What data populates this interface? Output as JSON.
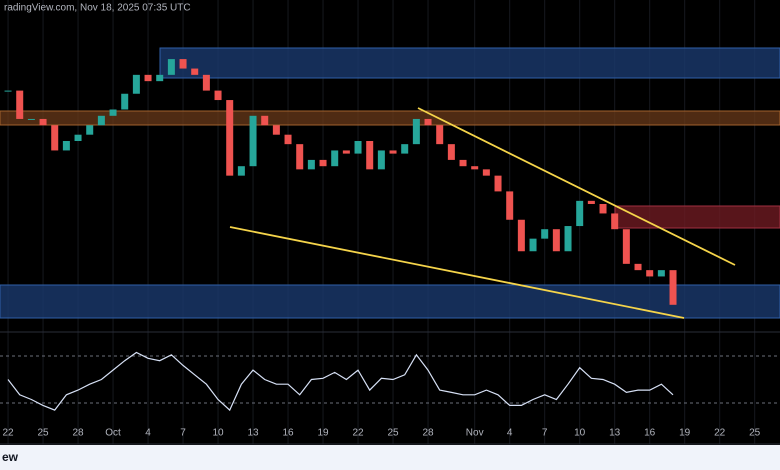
{
  "chart_data": {
    "type": "candlestick",
    "header": "radingView.com, Nov 18, 2025 07:35 UTC",
    "footer": "ew",
    "x": [
      0,
      1,
      2,
      3,
      4,
      5,
      6,
      7,
      8,
      9,
      10,
      11,
      12,
      13,
      14,
      15,
      16,
      17,
      18,
      19,
      20,
      21,
      22,
      23,
      24,
      25,
      26,
      27,
      28,
      29,
      30,
      31,
      32,
      33,
      34,
      35,
      36,
      37,
      38,
      39,
      40,
      41,
      42,
      43,
      44,
      45,
      46,
      47,
      48,
      49,
      50,
      51,
      52,
      53,
      54,
      55,
      56,
      57
    ],
    "xlim": [
      -0.69,
      66.17
    ],
    "xticks": [
      {
        "value": 0,
        "label": "22"
      },
      {
        "value": 3,
        "label": "25"
      },
      {
        "value": 6,
        "label": "28"
      },
      {
        "value": 9,
        "label": "Oct"
      },
      {
        "value": 12,
        "label": "4"
      },
      {
        "value": 15,
        "label": "7"
      },
      {
        "value": 18,
        "label": "10"
      },
      {
        "value": 21,
        "label": "13"
      },
      {
        "value": 24,
        "label": "16"
      },
      {
        "value": 27,
        "label": "19"
      },
      {
        "value": 30,
        "label": "22"
      },
      {
        "value": 33,
        "label": "25"
      },
      {
        "value": 36,
        "label": "28"
      },
      {
        "value": 40,
        "label": "Nov"
      },
      {
        "value": 43,
        "label": "4"
      },
      {
        "value": 46,
        "label": "7"
      },
      {
        "value": 49,
        "label": "10"
      },
      {
        "value": 52,
        "label": "13"
      },
      {
        "value": 55,
        "label": "16"
      },
      {
        "value": 58,
        "label": "19"
      },
      {
        "value": 61,
        "label": "22"
      },
      {
        "value": 64,
        "label": "25"
      }
    ],
    "ylim": [
      0,
      100
    ],
    "y2lim": [
      11.3,
      85.3
    ],
    "y2_levels": [
      70,
      30
    ],
    "up_color": "#26a69a",
    "down_color": "#ef5350",
    "series": [
      {
        "type": "candlestick",
        "values": [
          76,
          67,
          67,
          65,
          57,
          60,
          62,
          65,
          68,
          70,
          75,
          81,
          79,
          81,
          86,
          83,
          81,
          76,
          73,
          49,
          52,
          68,
          65,
          62,
          59,
          51,
          54,
          52,
          57,
          56,
          60,
          51,
          57,
          56,
          59,
          67,
          65,
          59,
          54,
          52,
          51,
          49,
          44,
          35,
          25,
          29,
          32,
          25,
          33,
          41,
          40,
          37,
          32,
          21,
          19,
          17,
          19,
          8
        ]
      },
      {
        "type": "line",
        "axis": "y2",
        "color": "#d6e0f5",
        "values": [
          50,
          37,
          33,
          28,
          24,
          37,
          41,
          46,
          50,
          58,
          66,
          73,
          68,
          66,
          71,
          62,
          54,
          46,
          33,
          24,
          46,
          58,
          50,
          46,
          46,
          37,
          50,
          51,
          56,
          50,
          58,
          41,
          51,
          50,
          54,
          71,
          58,
          41,
          39,
          37,
          37,
          41,
          37,
          28,
          28,
          33,
          37,
          33,
          46,
          60,
          51,
          50,
          46,
          39,
          41,
          41,
          46,
          37
        ]
      }
    ]
  }
}
